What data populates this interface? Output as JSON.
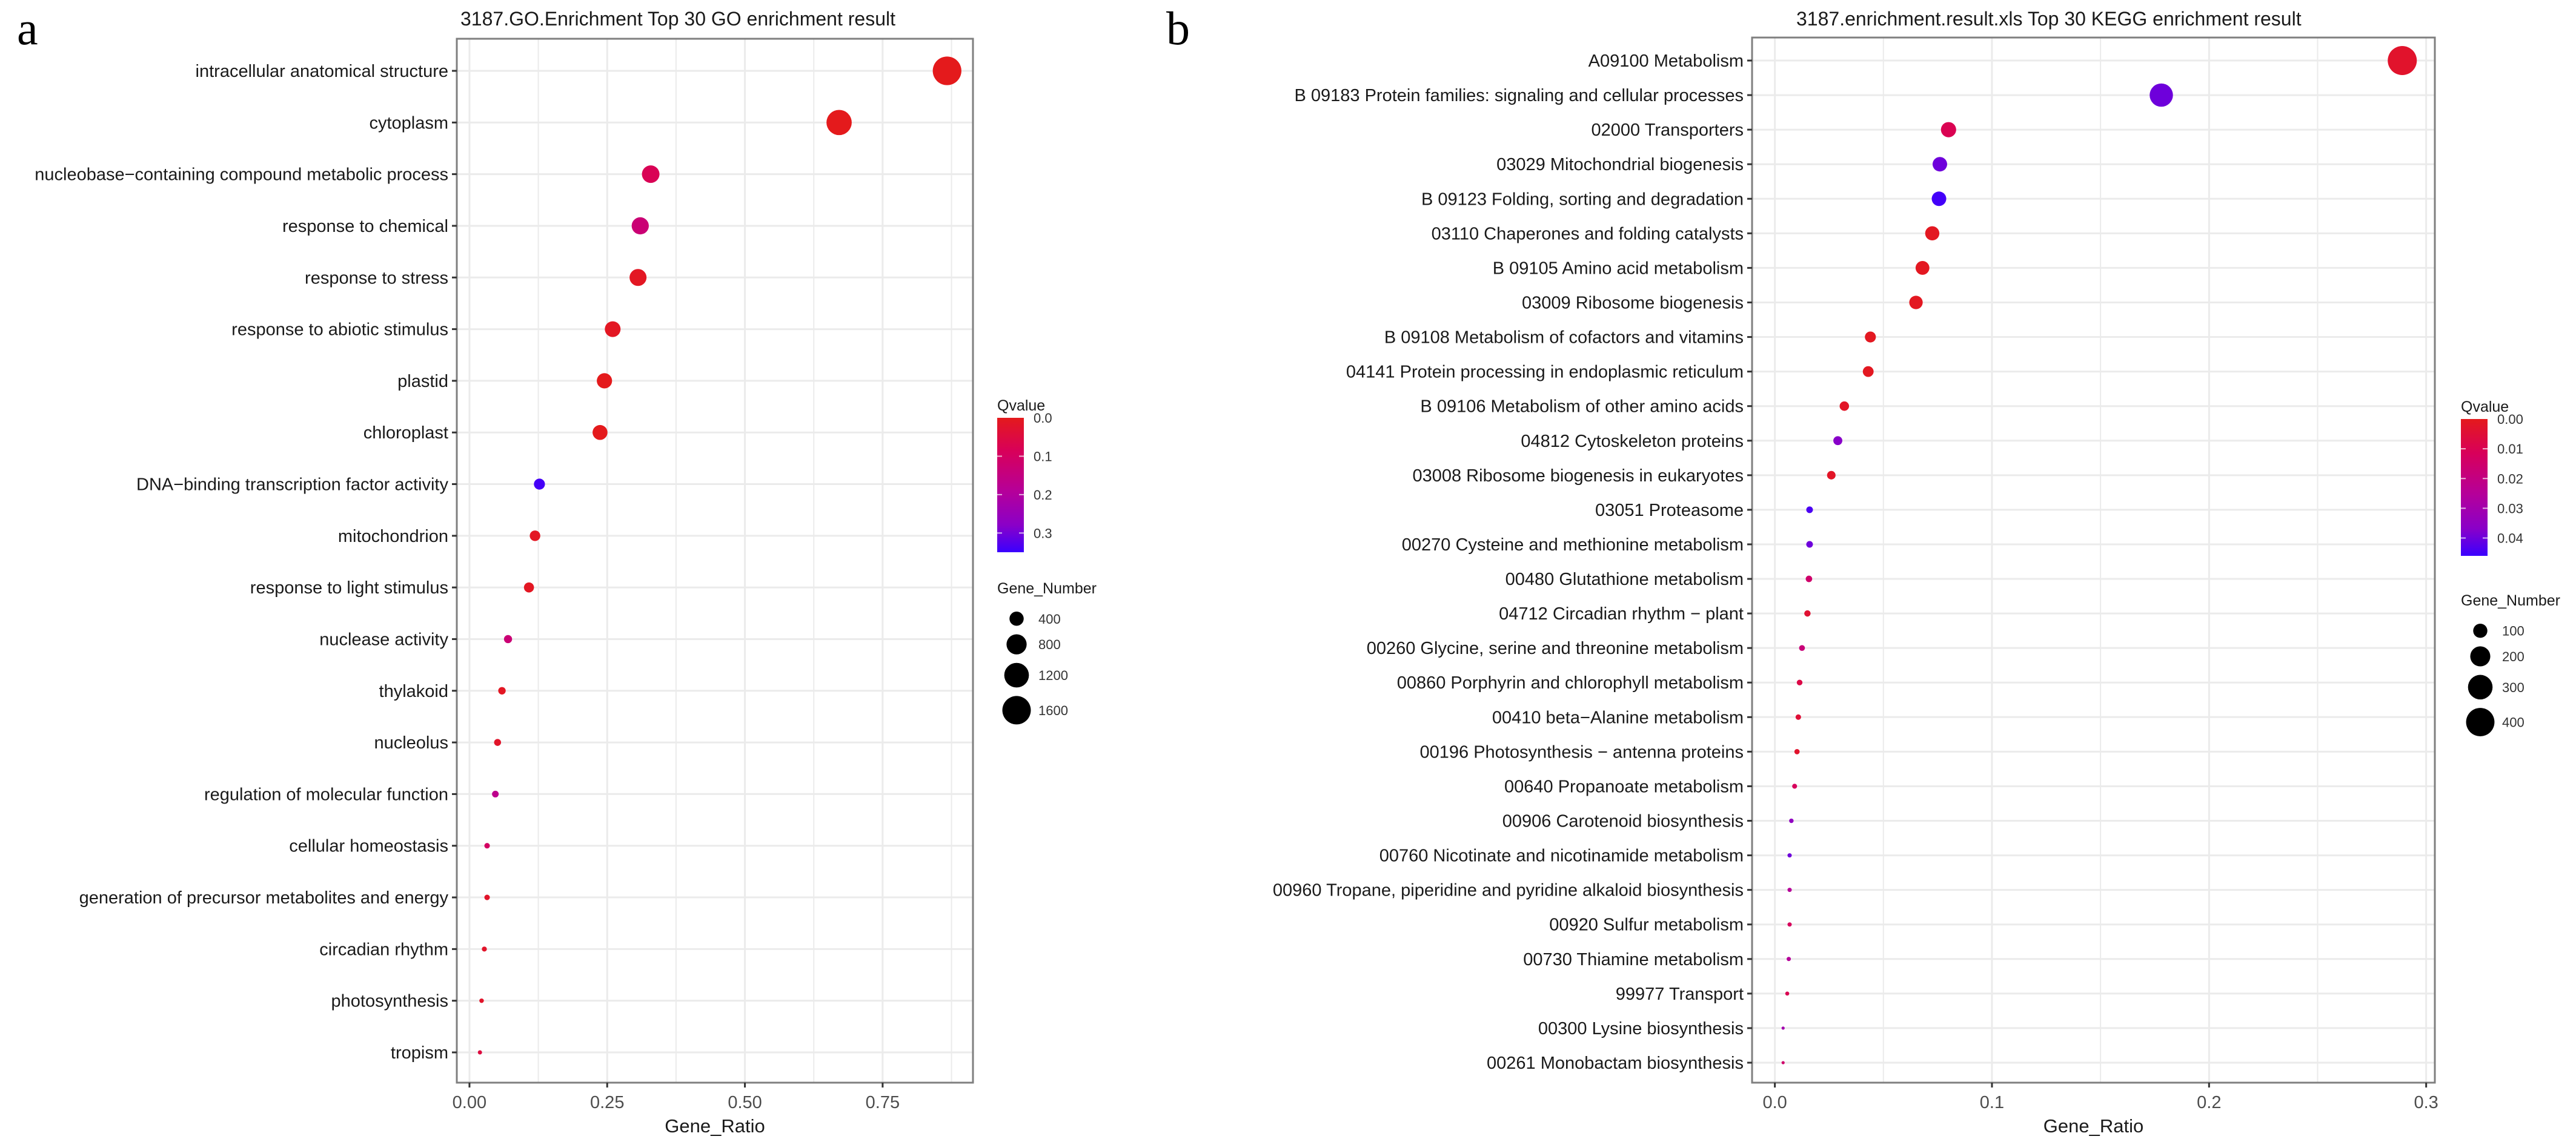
{
  "figure": {
    "panel_a_letter": "a",
    "panel_b_letter": "b"
  },
  "chart_data": [
    {
      "type": "scatter",
      "subtype": "bubble",
      "panel": "a",
      "title": "3187.GO.Enrichment Top 30 GO enrichment result",
      "xlabel": "Gene_Ratio",
      "ylabel": "",
      "xlim": [
        -0.023,
        0.914
      ],
      "xticks": [
        0.0,
        0.25,
        0.5,
        0.75
      ],
      "xtick_labels": [
        "0.00",
        "0.25",
        "0.50",
        "0.75"
      ],
      "grid": true,
      "color_legend": {
        "title": "Qvalue",
        "range": [
          0.0,
          0.35
        ],
        "ticks": [
          0.0,
          0.1,
          0.2,
          0.3
        ],
        "tick_labels": [
          "0.0",
          "0.1",
          "0.2",
          "0.3"
        ],
        "low_color": "#e41a1c",
        "high_color": "#3a00ff",
        "placement": "right"
      },
      "size_legend": {
        "title": "Gene_Number",
        "values": [
          400,
          800,
          1200,
          1600
        ],
        "labels": [
          "400",
          "800",
          "1200",
          "1600"
        ],
        "placement": "right"
      },
      "points": [
        {
          "term": "intracellular anatomical structure",
          "gene_ratio": 0.867,
          "qvalue": 0.0,
          "gene_number": 1620
        },
        {
          "term": "cytoplasm",
          "gene_ratio": 0.671,
          "qvalue": 0.0,
          "gene_number": 1260
        },
        {
          "term": "nucleobase−containing compound metabolic process",
          "gene_ratio": 0.329,
          "qvalue": 0.08,
          "gene_number": 610
        },
        {
          "term": "response to chemical",
          "gene_ratio": 0.31,
          "qvalue": 0.13,
          "gene_number": 580
        },
        {
          "term": "response to stress",
          "gene_ratio": 0.306,
          "qvalue": 0.01,
          "gene_number": 570
        },
        {
          "term": "response to abiotic stimulus",
          "gene_ratio": 0.26,
          "qvalue": 0.01,
          "gene_number": 490
        },
        {
          "term": "plastid",
          "gene_ratio": 0.245,
          "qvalue": 0.0,
          "gene_number": 460
        },
        {
          "term": "chloroplast",
          "gene_ratio": 0.237,
          "qvalue": 0.0,
          "gene_number": 440
        },
        {
          "term": "DNA−binding transcription factor activity",
          "gene_ratio": 0.127,
          "qvalue": 0.34,
          "gene_number": 240
        },
        {
          "term": "mitochondrion",
          "gene_ratio": 0.119,
          "qvalue": 0.01,
          "gene_number": 220
        },
        {
          "term": "response to light stimulus",
          "gene_ratio": 0.108,
          "qvalue": 0.01,
          "gene_number": 200
        },
        {
          "term": "nuclease activity",
          "gene_ratio": 0.07,
          "qvalue": 0.13,
          "gene_number": 130
        },
        {
          "term": "thylakoid",
          "gene_ratio": 0.059,
          "qvalue": 0.01,
          "gene_number": 110
        },
        {
          "term": "nucleolus",
          "gene_ratio": 0.051,
          "qvalue": 0.02,
          "gene_number": 95
        },
        {
          "term": "regulation of molecular function",
          "gene_ratio": 0.047,
          "qvalue": 0.17,
          "gene_number": 88
        },
        {
          "term": "cellular homeostasis",
          "gene_ratio": 0.032,
          "qvalue": 0.1,
          "gene_number": 60
        },
        {
          "term": "generation of precursor metabolites and energy",
          "gene_ratio": 0.032,
          "qvalue": 0.02,
          "gene_number": 60
        },
        {
          "term": "circadian rhythm",
          "gene_ratio": 0.027,
          "qvalue": 0.02,
          "gene_number": 50
        },
        {
          "term": "photosynthesis",
          "gene_ratio": 0.022,
          "qvalue": 0.02,
          "gene_number": 40
        },
        {
          "term": "tropism",
          "gene_ratio": 0.019,
          "qvalue": 0.05,
          "gene_number": 35
        }
      ]
    },
    {
      "type": "scatter",
      "subtype": "bubble",
      "panel": "b",
      "title": "3187.enrichment.result.xls Top 30 KEGG enrichment result",
      "xlabel": "Gene_Ratio",
      "ylabel": "",
      "xlim": [
        -0.0105,
        0.304
      ],
      "xticks": [
        0.0,
        0.1,
        0.2,
        0.3
      ],
      "xtick_labels": [
        "0.0",
        "0.1",
        "0.2",
        "0.3"
      ],
      "grid": true,
      "color_legend": {
        "title": "Qvalue",
        "range": [
          0.0,
          0.046
        ],
        "ticks": [
          0.0,
          0.01,
          0.02,
          0.03,
          0.04
        ],
        "tick_labels": [
          "0.00",
          "0.01",
          "0.02",
          "0.03",
          "0.04"
        ],
        "low_color": "#e41a1c",
        "high_color": "#3a00ff",
        "placement": "right"
      },
      "size_legend": {
        "title": "Gene_Number",
        "values": [
          100,
          200,
          300,
          400
        ],
        "labels": [
          "100",
          "200",
          "300",
          "400"
        ],
        "placement": "right"
      },
      "points": [
        {
          "term": "A09100 Metabolism",
          "gene_ratio": 0.289,
          "qvalue": 0.003,
          "gene_number": 420
        },
        {
          "term": "B  09183 Protein families: signaling and cellular processes",
          "gene_ratio": 0.178,
          "qvalue": 0.04,
          "gene_number": 270
        },
        {
          "term": "02000 Transporters",
          "gene_ratio": 0.08,
          "qvalue": 0.01,
          "gene_number": 115
        },
        {
          "term": "03029 Mitochondrial biogenesis",
          "gene_ratio": 0.076,
          "qvalue": 0.04,
          "gene_number": 105
        },
        {
          "term": "B  09123 Folding, sorting and degradation",
          "gene_ratio": 0.0756,
          "qvalue": 0.045,
          "gene_number": 105
        },
        {
          "term": "03110 Chaperones and folding catalysts",
          "gene_ratio": 0.0725,
          "qvalue": 0.001,
          "gene_number": 100
        },
        {
          "term": "B  09105 Amino acid metabolism",
          "gene_ratio": 0.068,
          "qvalue": 0.001,
          "gene_number": 95
        },
        {
          "term": "03009 Ribosome biogenesis",
          "gene_ratio": 0.065,
          "qvalue": 0.001,
          "gene_number": 90
        },
        {
          "term": "B  09108 Metabolism of cofactors and vitamins",
          "gene_ratio": 0.044,
          "qvalue": 0.001,
          "gene_number": 60
        },
        {
          "term": "04141 Protein processing in endoplasmic reticulum",
          "gene_ratio": 0.043,
          "qvalue": 0.001,
          "gene_number": 58
        },
        {
          "term": "B  09106 Metabolism of other amino acids",
          "gene_ratio": 0.032,
          "qvalue": 0.002,
          "gene_number": 44
        },
        {
          "term": "04812 Cytoskeleton proteins",
          "gene_ratio": 0.029,
          "qvalue": 0.037,
          "gene_number": 40
        },
        {
          "term": "03008 Ribosome biogenesis in eukaryotes",
          "gene_ratio": 0.026,
          "qvalue": 0.002,
          "gene_number": 36
        },
        {
          "term": "03051 Proteasome",
          "gene_ratio": 0.016,
          "qvalue": 0.044,
          "gene_number": 22
        },
        {
          "term": "00270 Cysteine and methionine metabolism",
          "gene_ratio": 0.016,
          "qvalue": 0.04,
          "gene_number": 22
        },
        {
          "term": "00480 Glutathione metabolism",
          "gene_ratio": 0.0157,
          "qvalue": 0.015,
          "gene_number": 21
        },
        {
          "term": "04712 Circadian rhythm − plant",
          "gene_ratio": 0.015,
          "qvalue": 0.004,
          "gene_number": 20
        },
        {
          "term": "00260 Glycine, serine and threonine metabolism",
          "gene_ratio": 0.0125,
          "qvalue": 0.018,
          "gene_number": 17
        },
        {
          "term": "00860 Porphyrin and chlorophyll metabolism",
          "gene_ratio": 0.0114,
          "qvalue": 0.008,
          "gene_number": 16
        },
        {
          "term": "00410 beta−Alanine metabolism",
          "gene_ratio": 0.0108,
          "qvalue": 0.005,
          "gene_number": 15
        },
        {
          "term": "00196 Photosynthesis − antenna proteins",
          "gene_ratio": 0.0102,
          "qvalue": 0.003,
          "gene_number": 14
        },
        {
          "term": "00640 Propanoate metabolism",
          "gene_ratio": 0.0091,
          "qvalue": 0.012,
          "gene_number": 12
        },
        {
          "term": "00906 Carotenoid biosynthesis",
          "gene_ratio": 0.0076,
          "qvalue": 0.035,
          "gene_number": 10
        },
        {
          "term": "00760 Nicotinate and nicotinamide metabolism",
          "gene_ratio": 0.0068,
          "qvalue": 0.04,
          "gene_number": 9
        },
        {
          "term": "00960 Tropane, piperidine and pyridine alkaloid biosynthesis",
          "gene_ratio": 0.0068,
          "qvalue": 0.025,
          "gene_number": 9
        },
        {
          "term": "00920 Sulfur metabolism",
          "gene_ratio": 0.0068,
          "qvalue": 0.012,
          "gene_number": 9
        },
        {
          "term": "00730 Thiamine metabolism",
          "gene_ratio": 0.0064,
          "qvalue": 0.025,
          "gene_number": 9
        },
        {
          "term": "99977 Transport",
          "gene_ratio": 0.0057,
          "qvalue": 0.01,
          "gene_number": 8
        },
        {
          "term": "00300 Lysine biosynthesis",
          "gene_ratio": 0.0038,
          "qvalue": 0.03,
          "gene_number": 5
        },
        {
          "term": "00261 Monobactam biosynthesis",
          "gene_ratio": 0.0038,
          "qvalue": 0.015,
          "gene_number": 5
        }
      ]
    }
  ]
}
